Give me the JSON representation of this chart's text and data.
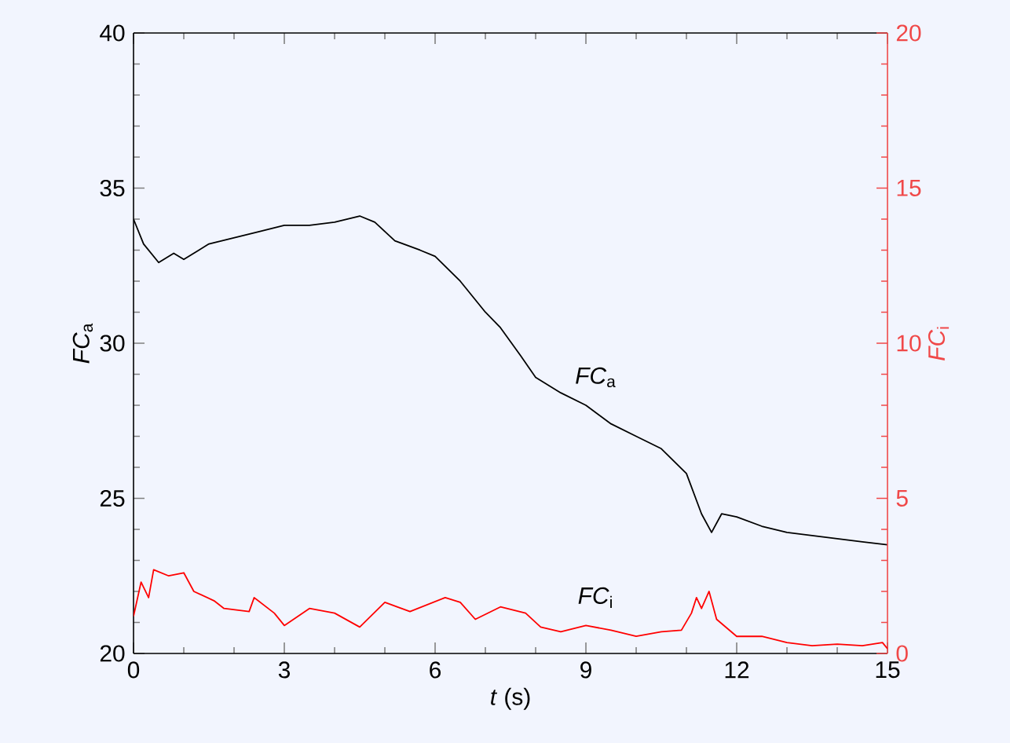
{
  "chart_data": {
    "type": "line",
    "xlabel": "*t* (s)",
    "ylabel": "*FC*$_{a}$",
    "y2label": "*FC*$_{i}$",
    "xlim": [
      0,
      15
    ],
    "xticks": [
      0,
      3,
      6,
      9,
      12,
      15
    ],
    "ylim": [
      20,
      40
    ],
    "yticks": [
      20,
      25,
      30,
      35,
      40
    ],
    "y2lim": [
      0,
      20
    ],
    "y2ticks": [
      0,
      5,
      10,
      15,
      20
    ],
    "grid": false,
    "marker": "none",
    "line_style": "solid",
    "series": [
      {
        "color": "#000000",
        "x": [
          0,
          0.2,
          0.5,
          0.8,
          1,
          1.3,
          1.5,
          2,
          2.5,
          3,
          3.5,
          4,
          4.5,
          4.8,
          5.2,
          5.7,
          6,
          6.5,
          7,
          7.3,
          7.7,
          8,
          8.5,
          9,
          9.5,
          10,
          10.5,
          11,
          11.3,
          11.5,
          11.7,
          12,
          12.5,
          13,
          13.5,
          14,
          14.5,
          15
        ],
        "values": [
          34.0,
          33.2,
          32.6,
          32.9,
          32.7,
          33.0,
          33.2,
          33.4,
          33.6,
          33.8,
          33.8,
          33.9,
          34.1,
          33.9,
          33.3,
          33.0,
          32.8,
          32.0,
          31.0,
          30.5,
          29.6,
          28.9,
          28.4,
          28.0,
          27.4,
          27.0,
          26.6,
          25.8,
          24.5,
          23.9,
          24.5,
          24.4,
          24.1,
          23.9,
          23.8,
          23.7,
          23.6,
          23.5
        ]
      },
      {
        "color": "#ff0000",
        "axis": "y2",
        "x": [
          0,
          0.15,
          0.3,
          0.4,
          0.7,
          1.0,
          1.2,
          1.6,
          1.8,
          2.3,
          2.4,
          2.8,
          3,
          3.5,
          4,
          4.5,
          5,
          5.5,
          6.2,
          6.5,
          6.8,
          7.3,
          7.8,
          8.1,
          8.5,
          9,
          9.5,
          10,
          10.5,
          10.9,
          11.1,
          11.2,
          11.3,
          11.45,
          11.6,
          12,
          12.5,
          13,
          13.5,
          14,
          14.5,
          14.9,
          15
        ],
        "values": [
          1.2,
          2.3,
          1.8,
          2.7,
          2.5,
          2.6,
          2.0,
          1.7,
          1.45,
          1.35,
          1.8,
          1.3,
          0.9,
          1.45,
          1.3,
          0.85,
          1.65,
          1.35,
          1.8,
          1.65,
          1.1,
          1.5,
          1.3,
          0.85,
          0.7,
          0.9,
          0.75,
          0.55,
          0.7,
          0.75,
          1.3,
          1.8,
          1.45,
          2.0,
          1.1,
          0.55,
          0.55,
          0.35,
          0.25,
          0.3,
          0.25,
          0.35,
          0.15
        ]
      }
    ],
    "annotations": [
      "*FC*$_{a}$",
      "*FC*$_{i}$"
    ]
  }
}
